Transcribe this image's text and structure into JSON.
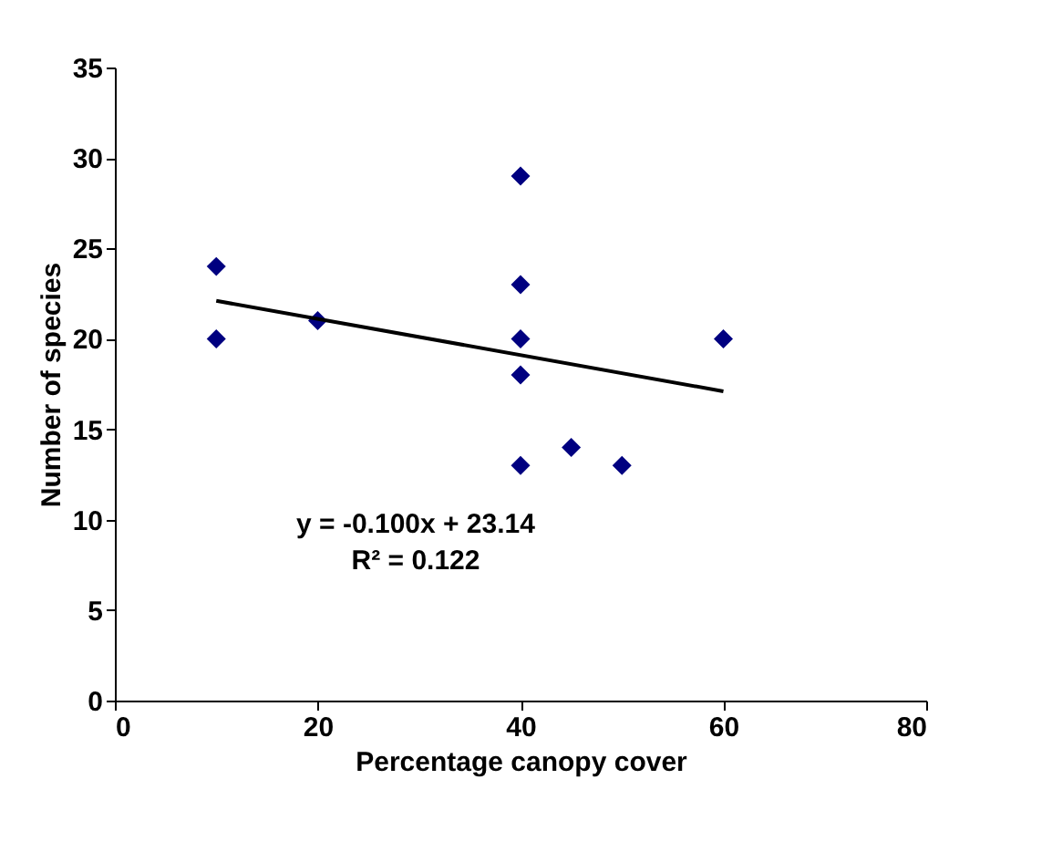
{
  "chart_data": {
    "type": "scatter",
    "xlabel": "Percentage canopy cover",
    "ylabel": "Number of species",
    "xlim": [
      0,
      80
    ],
    "xticks": [
      0,
      20,
      40,
      60,
      80
    ],
    "ylim": [
      0,
      35
    ],
    "yticks": [
      0,
      5,
      10,
      15,
      20,
      25,
      30,
      35
    ],
    "grid": false,
    "series": [
      {
        "color": "#000080",
        "marker": "diamond",
        "x": [
          10,
          10,
          20,
          40,
          40,
          40,
          40,
          40,
          45,
          50,
          60
        ],
        "values": [
          24,
          20,
          21,
          29,
          23,
          20,
          18,
          13,
          14,
          13,
          20
        ]
      },
      {
        "type": "line",
        "color": "#000000",
        "marker": "none",
        "line_style": "solid",
        "x": [
          10,
          60
        ],
        "values": [
          22.1,
          17.1
        ]
      }
    ],
    "annotations": [
      "y = -0.100x + 23.14",
      "R² = 0.122"
    ]
  }
}
